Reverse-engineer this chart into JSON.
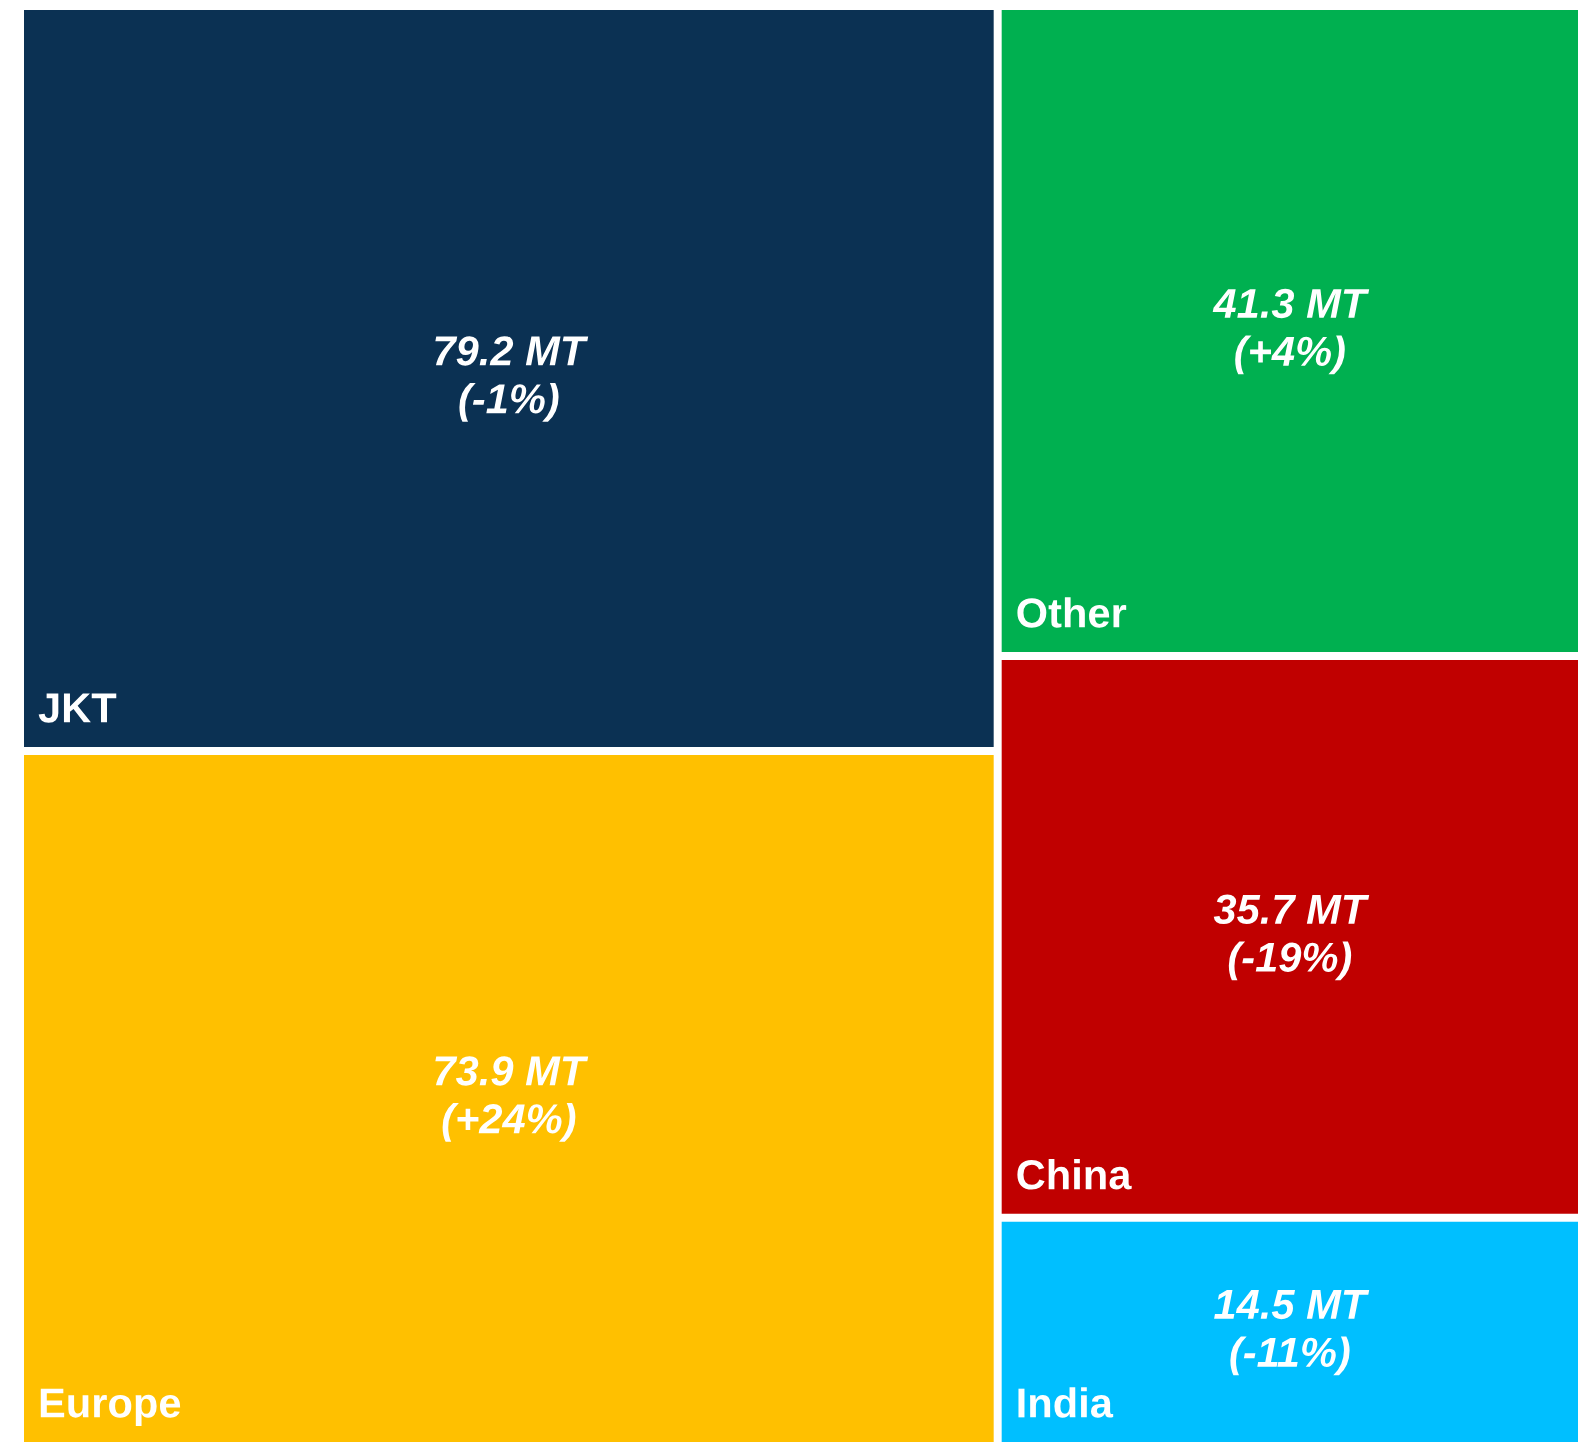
{
  "chart_data": {
    "type": "other",
    "categories": [
      "JKT",
      "Europe",
      "Other",
      "China",
      "India"
    ],
    "values": [
      79.2,
      73.9,
      41.3,
      35.7,
      14.5
    ],
    "value_labels": [
      "79.2 MT\n(-1%)",
      "73.9 MT\n(+24%)",
      "41.3 MT\n(+4%)",
      "35.7 MT\n(-19%)",
      "14.5 MT\n(-11%)"
    ],
    "colors": [
      "#0b3153",
      "#ffc000",
      "#00b050",
      "#c00000",
      "#00bfff"
    ]
  }
}
